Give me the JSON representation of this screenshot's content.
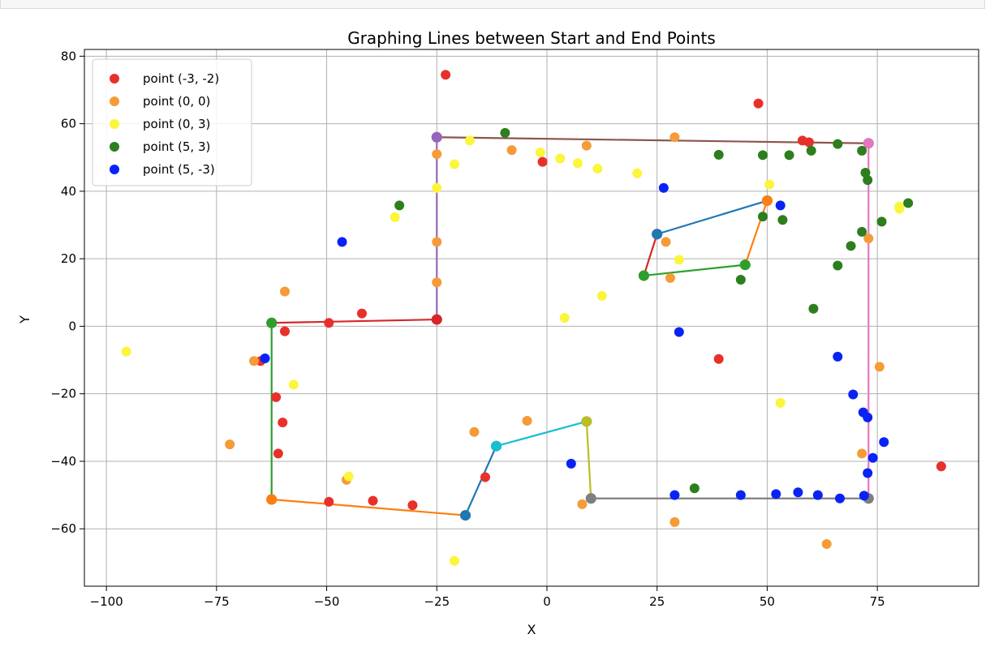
{
  "chart_data": {
    "type": "scatter",
    "title": "Graphing Lines between Start and End Points",
    "xlabel": "X",
    "ylabel": "Y",
    "xlim": [
      -105,
      98
    ],
    "ylim": [
      -77,
      82
    ],
    "xticks": [
      -100,
      -75,
      -50,
      -25,
      0,
      25,
      50,
      75
    ],
    "xtick_labels": [
      "−100",
      "−75",
      "−50",
      "−25",
      "0",
      "25",
      "50",
      "75"
    ],
    "yticks": [
      -60,
      -40,
      -20,
      0,
      20,
      40,
      60,
      80
    ],
    "ytick_labels": [
      "−60",
      "−40",
      "−20",
      "0",
      "20",
      "40",
      "60",
      "80"
    ],
    "grid": true,
    "legend_position": "top-left",
    "series": [
      {
        "name": "point (-3, -2)",
        "color": "#e8302a",
        "points": [
          [
            -23,
            74.5
          ],
          [
            48,
            66
          ],
          [
            -1,
            48.7
          ],
          [
            58,
            55
          ],
          [
            59.5,
            54.5
          ],
          [
            -42,
            3.8
          ],
          [
            -49.5,
            1
          ],
          [
            -59.5,
            -1.5
          ],
          [
            -65,
            -10.3
          ],
          [
            -61.5,
            -21
          ],
          [
            -60,
            -28.5
          ],
          [
            -61,
            -37.7
          ],
          [
            -14,
            -44.7
          ],
          [
            -39.5,
            -51.7
          ],
          [
            -49.5,
            -52
          ],
          [
            -30.5,
            -53
          ],
          [
            39,
            -9.7
          ],
          [
            89.5,
            -41.5
          ]
        ]
      },
      {
        "name": "point (0, 0)",
        "color": "#f59b38",
        "points": [
          [
            -25,
            51
          ],
          [
            -8,
            52.2
          ],
          [
            9,
            53.5
          ],
          [
            29,
            56
          ],
          [
            -25,
            25
          ],
          [
            -25,
            13
          ],
          [
            -59.5,
            10.3
          ],
          [
            -66.5,
            -10.3
          ],
          [
            -72,
            -35
          ],
          [
            -16.5,
            -31.3
          ],
          [
            -4.5,
            -28
          ],
          [
            -45.5,
            -45.5
          ],
          [
            8,
            -52.7
          ],
          [
            29,
            -58
          ],
          [
            63.5,
            -64.5
          ],
          [
            27,
            25
          ],
          [
            28,
            14.3
          ],
          [
            73,
            26
          ],
          [
            75.5,
            -12
          ],
          [
            71.5,
            -37.7
          ]
        ]
      },
      {
        "name": "point (0, 3)",
        "color": "#fbf53c",
        "points": [
          [
            -95.5,
            -7.5
          ],
          [
            -34.5,
            32.3
          ],
          [
            -25,
            41
          ],
          [
            -21,
            48
          ],
          [
            -17.5,
            55
          ],
          [
            -1.5,
            51.5
          ],
          [
            3,
            49.7
          ],
          [
            7,
            48.3
          ],
          [
            11.5,
            46.7
          ],
          [
            20.5,
            45.3
          ],
          [
            4,
            2.5
          ],
          [
            12.5,
            9
          ],
          [
            30,
            19.7
          ],
          [
            50.5,
            42
          ],
          [
            53,
            -22.7
          ],
          [
            80,
            35.5
          ],
          [
            80,
            34.8
          ],
          [
            -57.5,
            -17.3
          ],
          [
            -45,
            -44.5
          ],
          [
            -21,
            -69.5
          ]
        ]
      },
      {
        "name": "point (5, 3)",
        "color": "#2d7e1d",
        "points": [
          [
            -33.5,
            35.8
          ],
          [
            -9.5,
            57.3
          ],
          [
            39,
            50.8
          ],
          [
            49,
            50.7
          ],
          [
            55,
            50.7
          ],
          [
            60,
            52
          ],
          [
            66,
            54
          ],
          [
            71.5,
            52
          ],
          [
            72.3,
            45.5
          ],
          [
            72.8,
            43.3
          ],
          [
            82,
            36.5
          ],
          [
            76,
            31
          ],
          [
            71.5,
            28
          ],
          [
            69,
            23.8
          ],
          [
            66,
            18
          ],
          [
            44,
            13.8
          ],
          [
            53.5,
            31.5
          ],
          [
            49,
            32.5
          ],
          [
            60.5,
            5.2
          ],
          [
            33.5,
            -48
          ]
        ]
      },
      {
        "name": "point (5, -3)",
        "color": "#0a23f5",
        "points": [
          [
            -46.5,
            25
          ],
          [
            -64,
            -9.5
          ],
          [
            26.5,
            41
          ],
          [
            30,
            -1.7
          ],
          [
            53,
            35.8
          ],
          [
            66,
            -9
          ],
          [
            69.5,
            -20.2
          ],
          [
            71.8,
            -25.5
          ],
          [
            72.8,
            -27
          ],
          [
            76.5,
            -34.3
          ],
          [
            74,
            -39
          ],
          [
            72.8,
            -43.5
          ],
          [
            5.5,
            -40.7
          ],
          [
            29,
            -50
          ],
          [
            44,
            -50
          ],
          [
            52,
            -49.7
          ],
          [
            57,
            -49.2
          ],
          [
            61.5,
            -50
          ],
          [
            66.5,
            -51
          ],
          [
            72,
            -50.2
          ]
        ]
      }
    ],
    "lines": [
      {
        "color": "#8c564b",
        "points": [
          [
            -25,
            56
          ],
          [
            73,
            54.2
          ]
        ]
      },
      {
        "color": "#9467bd",
        "points": [
          [
            -25,
            56
          ],
          [
            -25,
            2
          ]
        ]
      },
      {
        "color": "#e377c2",
        "points": [
          [
            73,
            54.2
          ],
          [
            73,
            -51
          ]
        ]
      },
      {
        "color": "#d62728",
        "points": [
          [
            -62.5,
            1
          ],
          [
            -25,
            2
          ]
        ]
      },
      {
        "color": "#2ca02c",
        "points": [
          [
            -62.5,
            1
          ],
          [
            -62.5,
            -51.3
          ]
        ]
      },
      {
        "color": "#ff7f0e",
        "points": [
          [
            -62.5,
            -51.3
          ],
          [
            -18.5,
            -56
          ]
        ]
      },
      {
        "color": "#1f77b4",
        "points": [
          [
            -18.5,
            -56
          ],
          [
            -11.5,
            -35.5
          ]
        ]
      },
      {
        "color": "#17becf",
        "points": [
          [
            -11.5,
            -35.5
          ],
          [
            9,
            -28.2
          ]
        ]
      },
      {
        "color": "#bcbd22",
        "points": [
          [
            9,
            -28.2
          ],
          [
            10,
            -51
          ]
        ]
      },
      {
        "color": "#7f7f7f",
        "points": [
          [
            10,
            -51
          ],
          [
            73,
            -51
          ]
        ]
      },
      {
        "color": "#d62728",
        "points": [
          [
            25,
            27.3
          ],
          [
            22,
            15
          ]
        ]
      },
      {
        "color": "#1f77b4",
        "points": [
          [
            25,
            27.3
          ],
          [
            50,
            37.2
          ]
        ]
      },
      {
        "color": "#ff7f0e",
        "points": [
          [
            50,
            37.2
          ],
          [
            45,
            18.2
          ]
        ]
      },
      {
        "color": "#2ca02c",
        "points": [
          [
            22,
            15
          ],
          [
            45,
            18.2
          ]
        ]
      }
    ]
  }
}
